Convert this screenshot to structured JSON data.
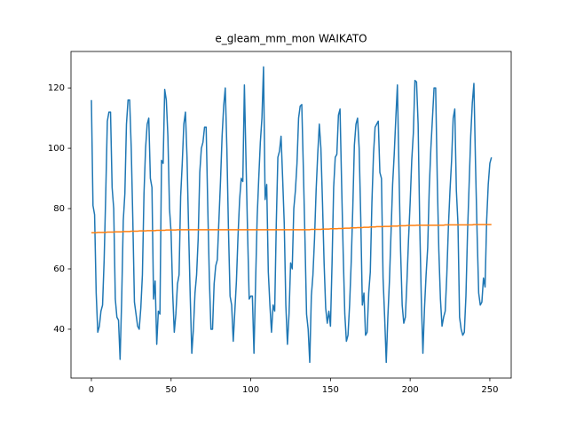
{
  "chart_data": {
    "type": "line",
    "title": "e_gleam_mm_mon WAIKATO",
    "x": [
      0,
      1,
      2,
      3,
      4,
      5,
      6,
      7,
      8,
      9,
      10,
      11,
      12,
      13,
      14,
      15,
      16,
      17,
      18,
      19,
      20,
      21,
      22,
      23,
      24,
      25,
      26,
      27,
      28,
      29,
      30,
      31,
      32,
      33,
      34,
      35,
      36,
      37,
      38,
      39,
      40,
      41,
      42,
      43,
      44,
      45,
      46,
      47,
      48,
      49,
      50,
      51,
      52,
      53,
      54,
      55,
      56,
      57,
      58,
      59,
      60,
      61,
      62,
      63,
      64,
      65,
      66,
      67,
      68,
      69,
      70,
      71,
      72,
      73,
      74,
      75,
      76,
      77,
      78,
      79,
      80,
      81,
      82,
      83,
      84,
      85,
      86,
      87,
      88,
      89,
      90,
      91,
      92,
      93,
      94,
      95,
      96,
      97,
      98,
      99,
      100,
      101,
      102,
      103,
      104,
      105,
      106,
      107,
      108,
      109,
      110,
      111,
      112,
      113,
      114,
      115,
      116,
      117,
      118,
      119,
      120,
      121,
      122,
      123,
      124,
      125,
      126,
      127,
      128,
      129,
      130,
      131,
      132,
      133,
      134,
      135,
      136,
      137,
      138,
      139,
      140,
      141,
      142,
      143,
      144,
      145,
      146,
      147,
      148,
      149,
      150,
      151,
      152,
      153,
      154,
      155,
      156,
      157,
      158,
      159,
      160,
      161,
      162,
      163,
      164,
      165,
      166,
      167,
      168,
      169,
      170,
      171,
      172,
      173,
      174,
      175,
      176,
      177,
      178,
      179,
      180,
      181,
      182,
      183,
      184,
      185,
      186,
      187,
      188,
      189,
      190,
      191,
      192,
      193,
      194,
      195,
      196,
      197,
      198,
      199,
      200,
      201,
      202,
      203,
      204,
      205,
      206,
      207,
      208,
      209,
      210,
      211,
      212,
      213,
      214,
      215,
      216,
      217,
      218,
      219,
      220,
      221,
      222,
      223,
      224,
      225,
      226,
      227,
      228,
      229,
      230,
      231,
      232,
      233,
      234,
      235,
      236,
      237,
      238,
      239,
      240,
      241,
      242,
      243,
      244,
      245,
      246,
      247,
      248,
      249,
      250,
      251
    ],
    "series": [
      {
        "color": "#1f77b4",
        "values": [
          116,
          81,
          78,
          52,
          39,
          41,
          46,
          48,
          63,
          85,
          109,
          112,
          112,
          87,
          80,
          50,
          44,
          43,
          30,
          50,
          76,
          85,
          108,
          116,
          116,
          100,
          76,
          49,
          45,
          41,
          40,
          47,
          58,
          85,
          100,
          108,
          110,
          90,
          87,
          50,
          56,
          35,
          46,
          45,
          96,
          95,
          119.5,
          116,
          104,
          80,
          72,
          52,
          39,
          45,
          55,
          58,
          84,
          95,
          108,
          112,
          97,
          73,
          51,
          32,
          40,
          52,
          58,
          70,
          92,
          100,
          102,
          107,
          107,
          81,
          57,
          40,
          40,
          55,
          61,
          63,
          76,
          89,
          104,
          114,
          120,
          100,
          73,
          51,
          48,
          36,
          46,
          56,
          71,
          83,
          90,
          89,
          121,
          96,
          72,
          50,
          51,
          51,
          32,
          55,
          77,
          90,
          102,
          110,
          127,
          83,
          88,
          59,
          48,
          39,
          48,
          46,
          75,
          97,
          99,
          104,
          90,
          75,
          48,
          35,
          45,
          62,
          60,
          80,
          86,
          95,
          110,
          114,
          114.5,
          93,
          70,
          45,
          40,
          29,
          51,
          58,
          70,
          86,
          98,
          108,
          100,
          82,
          62,
          47,
          42,
          46,
          41,
          62,
          87,
          97,
          98,
          111,
          113,
          88,
          65,
          45,
          36,
          38,
          48,
          62,
          80,
          101,
          108,
          110,
          100,
          77,
          48,
          52,
          38,
          39,
          52,
          59,
          82,
          98,
          107,
          108,
          109,
          92,
          90,
          57,
          44,
          29,
          44,
          56,
          72,
          88,
          98,
          110,
          121,
          92,
          66,
          48,
          42,
          44,
          56,
          70,
          82,
          96,
          105,
          122.5,
          122,
          108,
          75,
          50,
          32,
          47,
          58,
          67,
          87,
          100,
          110,
          120,
          120,
          90,
          66,
          50,
          41,
          44,
          46,
          58,
          74,
          86,
          96,
          110,
          113,
          86,
          75,
          44,
          40,
          38,
          39,
          51,
          72,
          88,
          104,
          115,
          121.5,
          95,
          72,
          52,
          48,
          49,
          57,
          54,
          76,
          88,
          95,
          97
        ]
      },
      {
        "color": "#ff7f0e",
        "values": [
          72.0,
          72.0,
          72.0,
          72.0,
          72.1,
          72.1,
          72.1,
          72.1,
          72.1,
          72.1,
          72.2,
          72.2,
          72.2,
          72.2,
          72.2,
          72.3,
          72.3,
          72.3,
          72.3,
          72.3,
          72.4,
          72.4,
          72.4,
          72.4,
          72.4,
          72.5,
          72.5,
          72.5,
          72.5,
          72.5,
          72.6,
          72.6,
          72.6,
          72.6,
          72.6,
          72.7,
          72.7,
          72.7,
          72.7,
          72.7,
          72.7,
          72.8,
          72.8,
          72.8,
          72.8,
          72.8,
          72.8,
          72.9,
          72.9,
          72.9,
          72.9,
          72.9,
          72.9,
          72.9,
          73.0,
          73.0,
          73.0,
          73.0,
          73.0,
          73.0,
          73.0,
          73.0,
          73.0,
          73.0,
          73.0,
          73.0,
          73.0,
          73.0,
          73.0,
          73.0,
          73.0,
          73.0,
          73.0,
          73.0,
          73.0,
          73.0,
          73.0,
          73.0,
          73.0,
          73.0,
          73.0,
          73.0,
          73.0,
          73.0,
          73.0,
          73.0,
          73.0,
          73.0,
          73.0,
          73.0,
          73.0,
          73.0,
          73.0,
          73.0,
          73.0,
          73.0,
          73.0,
          73.0,
          73.0,
          73.0,
          73.0,
          73.0,
          73.0,
          73.0,
          73.0,
          73.0,
          73.0,
          73.0,
          73.0,
          73.0,
          73.0,
          73.0,
          73.0,
          73.0,
          73.0,
          73.0,
          73.0,
          73.0,
          73.0,
          73.0,
          73.0,
          73.0,
          73.0,
          73.0,
          73.0,
          73.0,
          73.0,
          73.0,
          73.0,
          73.0,
          73.0,
          73.0,
          73.0,
          73.0,
          73.0,
          73.0,
          73.0,
          73.0,
          73.1,
          73.1,
          73.1,
          73.1,
          73.1,
          73.1,
          73.1,
          73.2,
          73.2,
          73.2,
          73.2,
          73.2,
          73.3,
          73.3,
          73.3,
          73.3,
          73.3,
          73.4,
          73.4,
          73.4,
          73.4,
          73.5,
          73.5,
          73.5,
          73.5,
          73.6,
          73.6,
          73.6,
          73.6,
          73.7,
          73.7,
          73.7,
          73.7,
          73.8,
          73.8,
          73.8,
          73.8,
          73.9,
          73.9,
          73.9,
          73.9,
          74.0,
          74.0,
          74.0,
          74.0,
          74.0,
          74.1,
          74.1,
          74.1,
          74.1,
          74.2,
          74.2,
          74.2,
          74.2,
          74.2,
          74.3,
          74.3,
          74.3,
          74.3,
          74.3,
          74.4,
          74.4,
          74.4,
          74.4,
          74.4,
          74.4,
          74.5,
          74.5,
          74.5,
          74.5,
          74.5,
          74.5,
          74.5,
          74.5,
          74.5,
          74.5,
          74.5,
          74.5,
          74.5,
          74.5,
          74.5,
          74.5,
          74.5,
          74.5,
          74.6,
          74.6,
          74.6,
          74.6,
          74.6,
          74.6,
          74.6,
          74.6,
          74.6,
          74.6,
          74.6,
          74.6,
          74.6,
          74.6,
          74.6,
          74.6,
          74.6,
          74.6,
          74.7,
          74.7,
          74.7,
          74.7,
          74.7,
          74.7,
          74.7,
          74.7,
          74.7,
          74.7,
          74.7,
          74.7
        ]
      }
    ],
    "xlim": [
      -12.8,
      263.4
    ],
    "ylim": [
      23.8,
      132.1
    ],
    "xticks": [
      0,
      50,
      100,
      150,
      200,
      250
    ],
    "yticks": [
      40,
      60,
      80,
      100,
      120
    ]
  }
}
